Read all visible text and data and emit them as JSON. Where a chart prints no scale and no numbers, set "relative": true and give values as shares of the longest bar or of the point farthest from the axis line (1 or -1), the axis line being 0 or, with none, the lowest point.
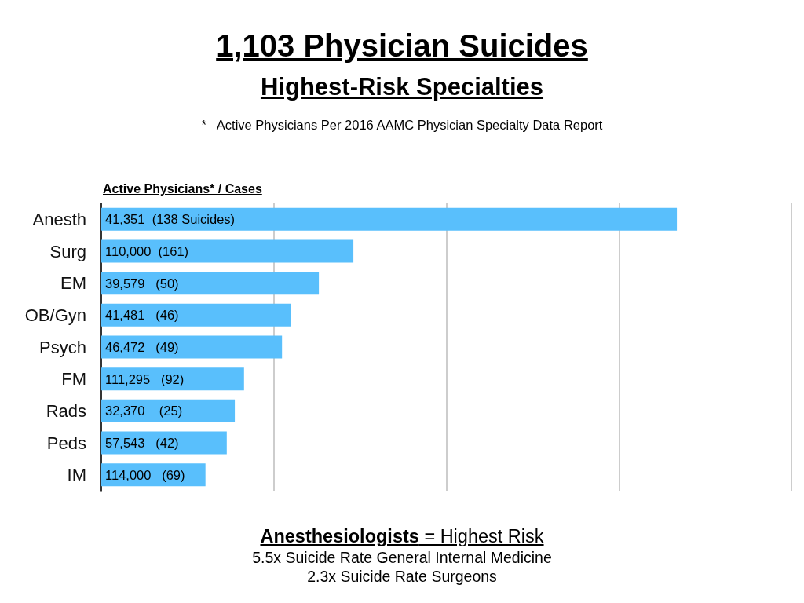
{
  "chart_data": {
    "type": "bar",
    "orientation": "horizontal",
    "relative": true,
    "title": "1,103 Physician Suicides",
    "subtitle": "Highest-Risk Specialties",
    "categories": [
      "Anesth",
      "Surg",
      "EM",
      "OB/Gyn",
      "Psych",
      "FM",
      "Rads",
      "Peds",
      "IM"
    ],
    "values": [
      1,
      0.438,
      0.378,
      0.33,
      0.314,
      0.248,
      0.232,
      0.218,
      0.181
    ],
    "color": "#59bffc",
    "grid": "x",
    "annotations": [
      "*   Active Physicians Per 2016 AAMC Physician Specialty Data Report",
      "Active Physicians* / Cases",
      {
        "text": "41,351  (138 Suicides)",
        "y": "Anesth"
      },
      {
        "text": "110,000  (161)",
        "y": "Surg"
      },
      {
        "text": "39,579   (50)",
        "y": "EM"
      },
      {
        "text": "41,481   (46)",
        "y": "OB/Gyn"
      },
      {
        "text": "46,472   (49)",
        "y": "Psych"
      },
      {
        "text": "111,295   (92)",
        "y": "FM"
      },
      {
        "text": "32,370    (25)",
        "y": "Rads"
      },
      {
        "text": "57,543   (42)",
        "y": "Peds"
      },
      {
        "text": "114,000   (69)",
        "y": "IM"
      },
      "Anesthesiologists = Highest Risk",
      "5.5x Suicide Rate General Internal Medicine",
      "2.3x Suicide Rate Surgeons"
    ]
  }
}
